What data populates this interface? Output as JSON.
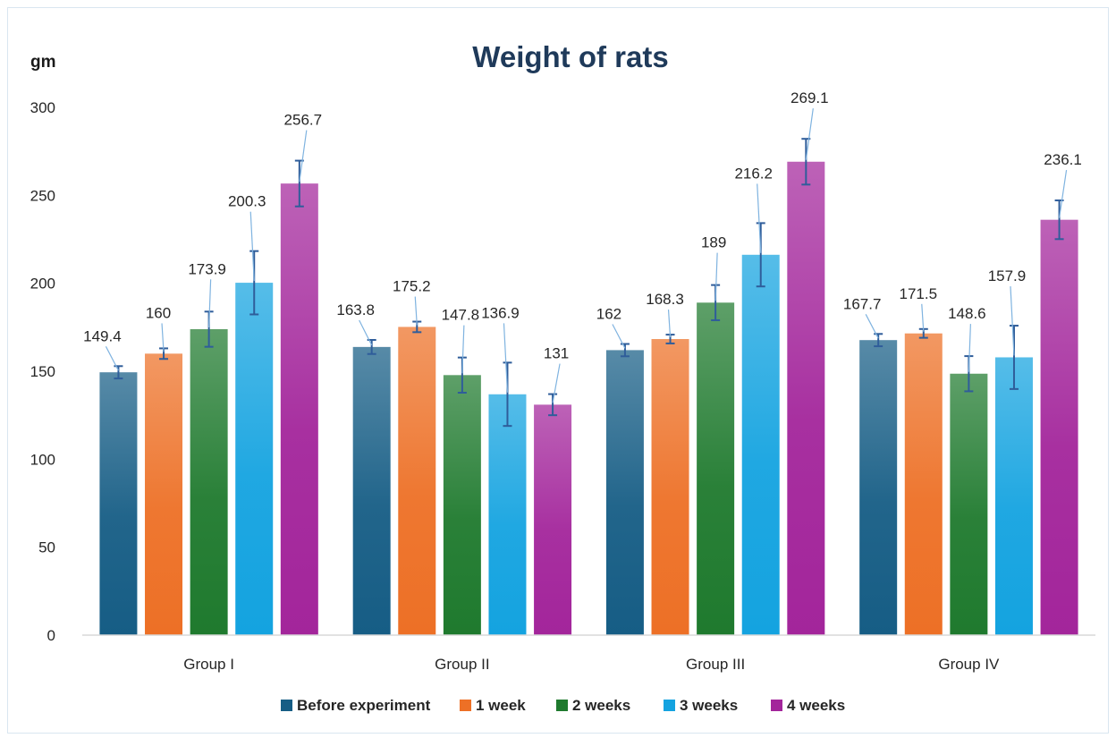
{
  "chart_data": {
    "type": "bar",
    "title": "Weight of rats",
    "ylabel": "gm",
    "xlabel": "",
    "ylim": [
      0,
      300
    ],
    "ytick_step": 50,
    "yticks": [
      "0",
      "50",
      "100",
      "150",
      "200",
      "250",
      "300"
    ],
    "categories": [
      "Group I",
      "Group II",
      "Group III",
      "Group IV"
    ],
    "series": [
      {
        "name": "Before experiment",
        "color": "#165d85",
        "values": [
          149.4,
          163.8,
          162,
          167.7
        ],
        "errors": [
          3.5,
          4,
          3.5,
          3.5
        ],
        "labels": [
          "149.4",
          "163.8",
          "162",
          "167.7"
        ]
      },
      {
        "name": "1 week",
        "color": "#ed7026",
        "values": [
          160,
          175.2,
          168.3,
          171.5
        ],
        "errors": [
          3,
          3,
          2.5,
          2.5
        ],
        "labels": [
          "160",
          "175.2",
          "168.3",
          "171.5"
        ]
      },
      {
        "name": "2 weeks",
        "color": "#1f7a2e",
        "values": [
          173.9,
          147.8,
          189,
          148.6
        ],
        "errors": [
          10,
          10,
          10,
          10
        ],
        "labels": [
          "173.9",
          "147.8",
          "189",
          "148.6"
        ]
      },
      {
        "name": "3 weeks",
        "color": "#14a3e0",
        "values": [
          200.3,
          136.9,
          216.2,
          157.9
        ],
        "errors": [
          18,
          18,
          18,
          18
        ],
        "labels": [
          "200.3",
          "136.9",
          "216.2",
          "157.9"
        ]
      },
      {
        "name": "4 weeks",
        "color": "#a3259b",
        "values": [
          256.7,
          131,
          269.1,
          236.1
        ],
        "errors": [
          13,
          6,
          13,
          11
        ],
        "labels": [
          "256.7",
          "131",
          "269.1",
          "236.1"
        ]
      }
    ],
    "legend_position": "bottom",
    "grid": false,
    "error_bars": true
  }
}
